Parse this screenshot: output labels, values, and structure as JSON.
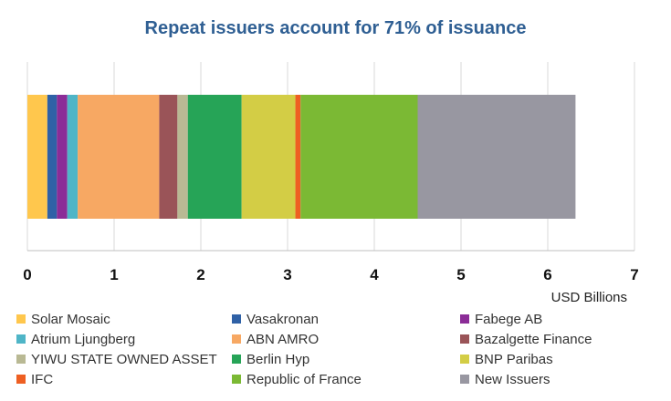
{
  "chart_data": {
    "type": "bar",
    "orientation": "horizontal",
    "stacked": true,
    "title": "Repeat issuers account for 71% of issuance",
    "xlabel": "USD Billions",
    "ylabel": "",
    "xlim": [
      0,
      7
    ],
    "xticks": [
      "0",
      "1",
      "2",
      "3",
      "4",
      "5",
      "6",
      "7"
    ],
    "grid": true,
    "legend_position": "bottom",
    "series": [
      {
        "name": "Solar Mosaic",
        "value": 0.23,
        "color": "#ffc74d"
      },
      {
        "name": "Vasakronan",
        "value": 0.11,
        "color": "#2f61a6"
      },
      {
        "name": "Fabege AB",
        "value": 0.12,
        "color": "#8b2c97"
      },
      {
        "name": "Atrium Ljungberg",
        "value": 0.12,
        "color": "#4fb5c7"
      },
      {
        "name": "ABN AMRO",
        "value": 0.94,
        "color": "#f7a863"
      },
      {
        "name": "Bazalgette Finance",
        "value": 0.21,
        "color": "#9a5458"
      },
      {
        "name": "YIWU STATE OWNED ASSET",
        "value": 0.12,
        "color": "#b9b994"
      },
      {
        "name": "Berlin Hyp",
        "value": 0.62,
        "color": "#26a457"
      },
      {
        "name": "BNP Paribas",
        "value": 0.62,
        "color": "#d3cd45"
      },
      {
        "name": "IFC",
        "value": 0.06,
        "color": "#ee5f22"
      },
      {
        "name": "Republic of France",
        "value": 1.35,
        "color": "#7bb934"
      },
      {
        "name": "New Issuers",
        "value": 1.82,
        "color": "#9897a1"
      }
    ]
  }
}
